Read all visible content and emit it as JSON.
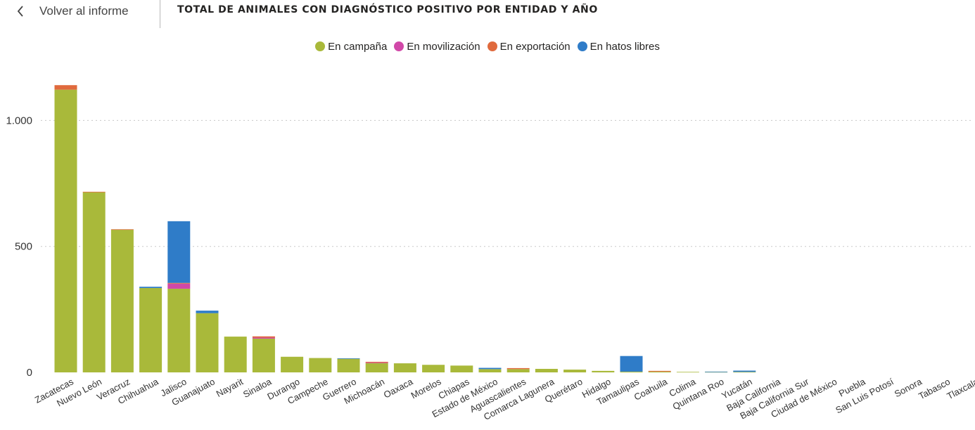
{
  "header": {
    "back_label": "Volver al informe",
    "title": "TOTAL DE ANIMALES CON DIAGNÓSTICO POSITIVO POR ENTIDAD Y AÑO"
  },
  "icons": {
    "back": "chevron-left-icon"
  },
  "colors": {
    "campana": "#A9B93A",
    "movilizacion": "#D148A8",
    "exportacion": "#E06A3D",
    "hatos": "#2F7CC8",
    "grid": "#C8C8C8",
    "axis_text": "#333333"
  },
  "chart_data": {
    "type": "bar",
    "stacked": true,
    "title": "TOTAL DE ANIMALES CON DIAGNÓSTICO POSITIVO POR ENTIDAD Y AÑO",
    "ylim": [
      0,
      1140
    ],
    "yticks": [
      0,
      500,
      1000
    ],
    "ytick_labels": [
      "0",
      "500",
      "1.000"
    ],
    "grid": "horizontal dotted",
    "legend_position": "top-center",
    "categories": [
      "Zacatecas",
      "Nuevo León",
      "Veracruz",
      "Chihuahua",
      "Jalisco",
      "Guanajuato",
      "Nayarit",
      "Sinaloa",
      "Durango",
      "Campeche",
      "Guerrero",
      "Michoacán",
      "Oaxaca",
      "Morelos",
      "Chiapas",
      "Estado de México",
      "Aguascalientes",
      "Comarca Lagunera",
      "Querétaro",
      "Hidalgo",
      "Tamaulipas",
      "Coahuila",
      "Colima",
      "Quintana Roo",
      "Yucatán",
      "Baja California",
      "Baja California Sur",
      "Ciudad de México",
      "Puebla",
      "San Luis Potosí",
      "Sonora",
      "Tabasco",
      "Tlaxcala"
    ],
    "series": [
      {
        "name": "En campaña",
        "color": "#A9B93A",
        "values": [
          1122,
          715,
          566,
          335,
          332,
          235,
          142,
          134,
          62,
          57,
          54,
          37,
          36,
          30,
          27,
          13,
          13,
          14,
          11,
          6,
          3,
          3,
          2,
          2,
          2,
          0,
          0,
          0,
          0,
          0,
          0,
          0,
          0
        ]
      },
      {
        "name": "En movilización",
        "color": "#D148A8",
        "values": [
          0,
          0,
          0,
          0,
          20,
          0,
          0,
          4,
          0,
          0,
          0,
          2,
          0,
          0,
          0,
          0,
          0,
          0,
          0,
          0,
          0,
          0,
          0,
          0,
          0,
          0,
          0,
          0,
          0,
          0,
          0,
          0,
          0
        ]
      },
      {
        "name": "En exportación",
        "color": "#E06A3D",
        "values": [
          18,
          2,
          2,
          0,
          3,
          0,
          0,
          5,
          0,
          0,
          0,
          3,
          0,
          0,
          0,
          0,
          4,
          0,
          0,
          0,
          0,
          3,
          0,
          0,
          0,
          0,
          0,
          0,
          0,
          0,
          0,
          0,
          0
        ]
      },
      {
        "name": "En hatos libres",
        "color": "#2F7CC8",
        "values": [
          0,
          0,
          0,
          5,
          245,
          10,
          0,
          0,
          0,
          0,
          2,
          0,
          0,
          0,
          0,
          5,
          0,
          0,
          0,
          0,
          62,
          0,
          0,
          1,
          5,
          0,
          0,
          0,
          0,
          0,
          0,
          0,
          0
        ]
      }
    ]
  }
}
